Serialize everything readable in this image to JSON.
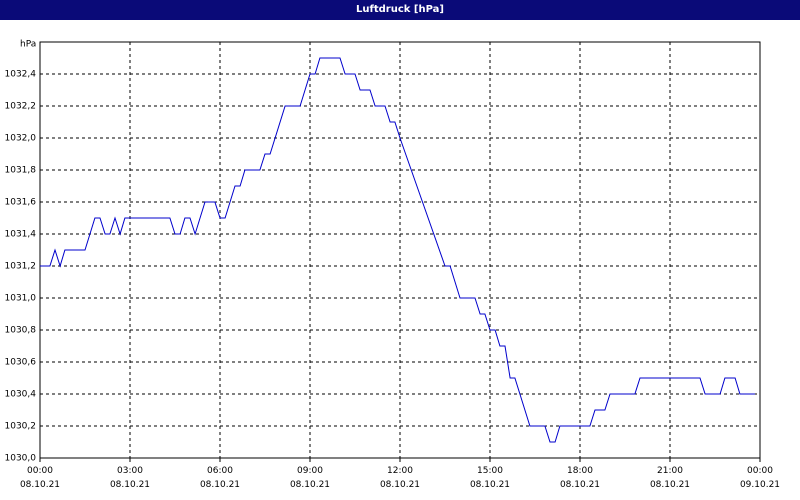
{
  "chart_data": {
    "type": "line",
    "title": "Luftdruck [hPa]",
    "y_label": "hPa",
    "x": [
      0,
      0.33,
      0.5,
      0.67,
      0.83,
      1.5,
      1.83,
      2,
      2.17,
      2.33,
      2.5,
      2.67,
      2.83,
      4.33,
      4.5,
      4.67,
      4.83,
      5,
      5.17,
      5.5,
      5.83,
      6,
      6.17,
      6.5,
      6.67,
      6.83,
      7.33,
      7.5,
      7.67,
      8.17,
      8.67,
      9,
      9.17,
      9.33,
      10,
      10.17,
      10.5,
      10.67,
      11,
      11.17,
      11.5,
      11.67,
      11.83,
      12,
      13.5,
      13.67,
      14,
      14.5,
      14.67,
      14.83,
      15,
      15.17,
      15.33,
      15.5,
      15.67,
      15.83,
      16.33,
      16.83,
      17,
      17.17,
      17.33,
      18.33,
      18.5,
      18.83,
      19,
      19.83,
      20,
      22,
      22.17,
      22.67,
      22.83,
      23.17,
      23.33,
      23.83
    ],
    "series": [
      {
        "name": "Luftdruck",
        "color": "#0000cc",
        "values": [
          1031.2,
          1031.2,
          1031.3,
          1031.2,
          1031.3,
          1031.3,
          1031.5,
          1031.5,
          1031.4,
          1031.4,
          1031.5,
          1031.4,
          1031.5,
          1031.5,
          1031.4,
          1031.4,
          1031.5,
          1031.5,
          1031.4,
          1031.6,
          1031.6,
          1031.5,
          1031.5,
          1031.7,
          1031.7,
          1031.8,
          1031.8,
          1031.9,
          1031.9,
          1032.2,
          1032.2,
          1032.4,
          1032.4,
          1032.5,
          1032.5,
          1032.4,
          1032.4,
          1032.3,
          1032.3,
          1032.2,
          1032.2,
          1032.1,
          1032.1,
          1032.0,
          1031.2,
          1031.2,
          1031.0,
          1031.0,
          1030.9,
          1030.9,
          1030.8,
          1030.8,
          1030.7,
          1030.7,
          1030.5,
          1030.5,
          1030.2,
          1030.2,
          1030.1,
          1030.1,
          1030.2,
          1030.2,
          1030.3,
          1030.3,
          1030.4,
          1030.4,
          1030.5,
          1030.5,
          1030.4,
          1030.4,
          1030.5,
          1030.5,
          1030.4,
          1030.4
        ]
      }
    ],
    "xlim": [
      0,
      24
    ],
    "xticks": [
      {
        "value": 0,
        "label": "00:00\n08.10.21"
      },
      {
        "value": 3,
        "label": "03:00\n08.10.21"
      },
      {
        "value": 6,
        "label": "06:00\n08.10.21"
      },
      {
        "value": 9,
        "label": "09:00\n08.10.21"
      },
      {
        "value": 12,
        "label": "12:00\n08.10.21"
      },
      {
        "value": 15,
        "label": "15:00\n08.10.21"
      },
      {
        "value": 18,
        "label": "18:00\n08.10.21"
      },
      {
        "value": 21,
        "label": "21:00\n08.10.21"
      },
      {
        "value": 24,
        "label": "00:00\n09.10.21"
      }
    ],
    "ylim": [
      1030.0,
      1032.6
    ],
    "yticks": [
      {
        "value": 1030.0,
        "label": "1030,0"
      },
      {
        "value": 1030.2,
        "label": "1030,2"
      },
      {
        "value": 1030.4,
        "label": "1030,4"
      },
      {
        "value": 1030.6,
        "label": "1030,6"
      },
      {
        "value": 1030.8,
        "label": "1030,8"
      },
      {
        "value": 1031.0,
        "label": "1031,0"
      },
      {
        "value": 1031.2,
        "label": "1031,2"
      },
      {
        "value": 1031.4,
        "label": "1031,4"
      },
      {
        "value": 1031.6,
        "label": "1031,6"
      },
      {
        "value": 1031.8,
        "label": "1031,8"
      },
      {
        "value": 1032.0,
        "label": "1032,0"
      },
      {
        "value": 1032.2,
        "label": "1032,2"
      },
      {
        "value": 1032.4,
        "label": "1032,4"
      }
    ],
    "grid": true
  }
}
